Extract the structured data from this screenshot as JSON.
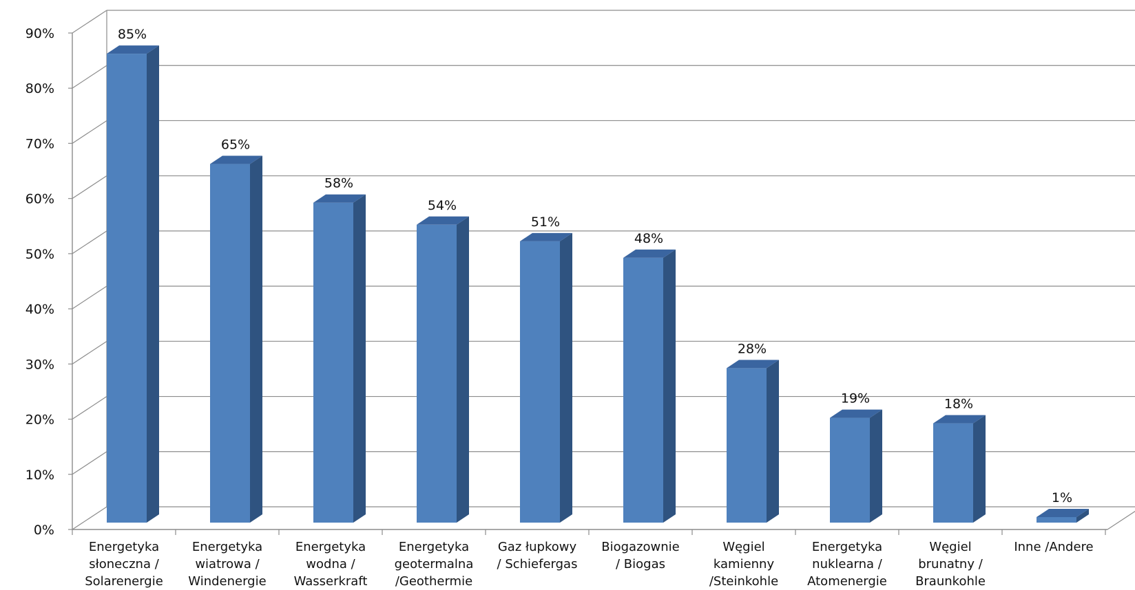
{
  "chart_data": {
    "type": "bar",
    "title": "",
    "xlabel": "",
    "ylabel": "",
    "ylim": [
      0,
      90
    ],
    "y_ticks": [
      "0%",
      "10%",
      "20%",
      "30%",
      "40%",
      "50%",
      "60%",
      "70%",
      "80%",
      "90%"
    ],
    "grid": true,
    "three_d": true,
    "bar_color": "#4f81bd",
    "categories": [
      [
        "Energetyka",
        "słoneczna /",
        "Solarenergie"
      ],
      [
        "Energetyka",
        "wiatrowa /",
        "Windenergie"
      ],
      [
        "Energetyka",
        "wodna /",
        "Wasserkraft"
      ],
      [
        "Energetyka",
        "geotermalna",
        "/Geothermie"
      ],
      [
        "Gaz łupkowy",
        "/ Schiefergas"
      ],
      [
        "Biogazownie",
        "/ Biogas"
      ],
      [
        "Węgiel",
        "kamienny",
        "/Steinkohle"
      ],
      [
        "Energetyka",
        "nuklearna /",
        "Atomenergie"
      ],
      [
        "Węgiel",
        "brunatny /",
        "Braunkohle"
      ],
      [
        "Inne /Andere"
      ]
    ],
    "values": [
      85,
      65,
      58,
      54,
      51,
      48,
      28,
      19,
      18,
      1
    ],
    "data_labels": [
      "85%",
      "65%",
      "58%",
      "54%",
      "51%",
      "48%",
      "28%",
      "19%",
      "18%",
      "1%"
    ]
  }
}
